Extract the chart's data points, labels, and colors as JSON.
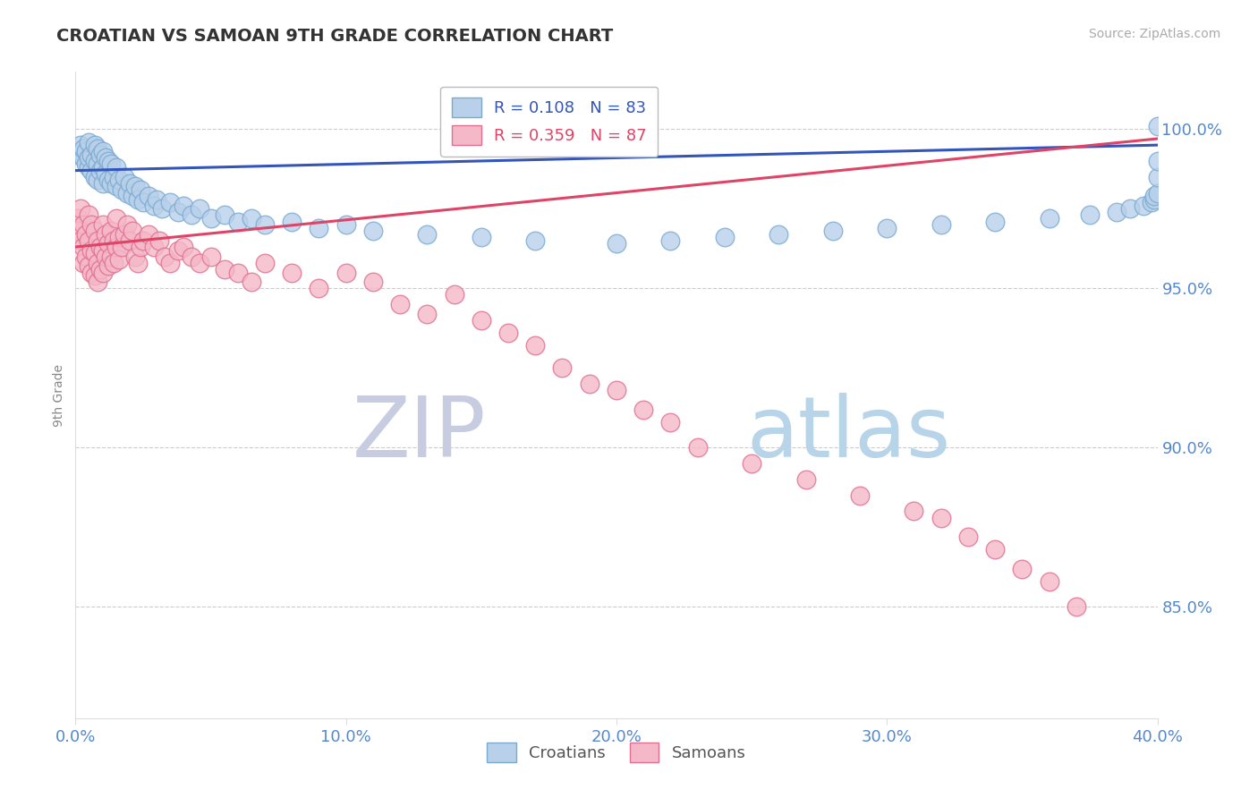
{
  "title": "CROATIAN VS SAMOAN 9TH GRADE CORRELATION CHART",
  "source_text": "Source: ZipAtlas.com",
  "ylabel": "9th Grade",
  "xlim": [
    0.0,
    0.4
  ],
  "ylim": [
    0.815,
    1.018
  ],
  "yticks": [
    0.85,
    0.9,
    0.95,
    1.0
  ],
  "ytick_labels": [
    "85.0%",
    "90.0%",
    "95.0%",
    "100.0%"
  ],
  "xticks": [
    0.0,
    0.1,
    0.2,
    0.3,
    0.4
  ],
  "xtick_labels": [
    "0.0%",
    "10.0%",
    "20.0%",
    "30.0%",
    "40.0%"
  ],
  "legend_label_1": "R = 0.108   N = 83",
  "legend_label_2": "R = 0.359   N = 87",
  "blue_dot_color": "#b8d0ea",
  "blue_edge_color": "#7aaad0",
  "pink_dot_color": "#f5b8c8",
  "pink_edge_color": "#e07090",
  "blue_line_color": "#3355bb",
  "pink_line_color": "#dd4466",
  "grid_color": "#cccccc",
  "title_color": "#333333",
  "axis_color": "#5588cc",
  "watermark_zip_color": "#c8cce0",
  "watermark_atlas_color": "#b8d4e8",
  "background_color": "#ffffff",
  "croatian_x": [
    0.001,
    0.002,
    0.002,
    0.003,
    0.003,
    0.004,
    0.004,
    0.005,
    0.005,
    0.005,
    0.006,
    0.006,
    0.007,
    0.007,
    0.007,
    0.008,
    0.008,
    0.008,
    0.009,
    0.009,
    0.01,
    0.01,
    0.01,
    0.011,
    0.011,
    0.012,
    0.012,
    0.013,
    0.013,
    0.014,
    0.015,
    0.015,
    0.016,
    0.017,
    0.018,
    0.019,
    0.02,
    0.021,
    0.022,
    0.023,
    0.024,
    0.025,
    0.027,
    0.029,
    0.03,
    0.032,
    0.035,
    0.038,
    0.04,
    0.043,
    0.046,
    0.05,
    0.055,
    0.06,
    0.065,
    0.07,
    0.08,
    0.09,
    0.1,
    0.11,
    0.13,
    0.15,
    0.17,
    0.2,
    0.22,
    0.24,
    0.26,
    0.28,
    0.3,
    0.32,
    0.34,
    0.36,
    0.375,
    0.385,
    0.39,
    0.395,
    0.398,
    0.399,
    0.399,
    0.4,
    0.4,
    0.4,
    0.4
  ],
  "croatian_y": [
    0.992,
    0.993,
    0.995,
    0.991,
    0.994,
    0.989,
    0.993,
    0.988,
    0.991,
    0.996,
    0.987,
    0.992,
    0.985,
    0.99,
    0.995,
    0.984,
    0.989,
    0.994,
    0.987,
    0.992,
    0.983,
    0.988,
    0.993,
    0.986,
    0.991,
    0.984,
    0.99,
    0.983,
    0.989,
    0.985,
    0.982,
    0.988,
    0.984,
    0.981,
    0.985,
    0.98,
    0.983,
    0.979,
    0.982,
    0.978,
    0.981,
    0.977,
    0.979,
    0.976,
    0.978,
    0.975,
    0.977,
    0.974,
    0.976,
    0.973,
    0.975,
    0.972,
    0.973,
    0.971,
    0.972,
    0.97,
    0.971,
    0.969,
    0.97,
    0.968,
    0.967,
    0.966,
    0.965,
    0.964,
    0.965,
    0.966,
    0.967,
    0.968,
    0.969,
    0.97,
    0.971,
    0.972,
    0.973,
    0.974,
    0.975,
    0.976,
    0.977,
    0.978,
    0.979,
    0.98,
    0.985,
    0.99,
    1.001
  ],
  "samoan_x": [
    0.001,
    0.001,
    0.002,
    0.002,
    0.003,
    0.003,
    0.003,
    0.004,
    0.004,
    0.005,
    0.005,
    0.005,
    0.006,
    0.006,
    0.006,
    0.007,
    0.007,
    0.007,
    0.008,
    0.008,
    0.008,
    0.009,
    0.009,
    0.01,
    0.01,
    0.01,
    0.011,
    0.011,
    0.012,
    0.012,
    0.013,
    0.013,
    0.014,
    0.014,
    0.015,
    0.015,
    0.016,
    0.016,
    0.017,
    0.018,
    0.019,
    0.02,
    0.021,
    0.022,
    0.023,
    0.024,
    0.025,
    0.027,
    0.029,
    0.031,
    0.033,
    0.035,
    0.038,
    0.04,
    0.043,
    0.046,
    0.05,
    0.055,
    0.06,
    0.065,
    0.07,
    0.08,
    0.09,
    0.1,
    0.11,
    0.12,
    0.13,
    0.14,
    0.15,
    0.16,
    0.17,
    0.18,
    0.19,
    0.2,
    0.21,
    0.22,
    0.23,
    0.25,
    0.27,
    0.29,
    0.31,
    0.32,
    0.33,
    0.34,
    0.35,
    0.36,
    0.37
  ],
  "samoan_y": [
    0.972,
    0.968,
    0.975,
    0.965,
    0.97,
    0.963,
    0.958,
    0.967,
    0.96,
    0.973,
    0.965,
    0.957,
    0.97,
    0.962,
    0.955,
    0.968,
    0.961,
    0.954,
    0.965,
    0.958,
    0.952,
    0.963,
    0.956,
    0.97,
    0.962,
    0.955,
    0.967,
    0.96,
    0.964,
    0.957,
    0.968,
    0.96,
    0.965,
    0.958,
    0.972,
    0.963,
    0.966,
    0.959,
    0.963,
    0.967,
    0.97,
    0.965,
    0.968,
    0.96,
    0.958,
    0.963,
    0.965,
    0.967,
    0.963,
    0.965,
    0.96,
    0.958,
    0.962,
    0.963,
    0.96,
    0.958,
    0.96,
    0.956,
    0.955,
    0.952,
    0.958,
    0.955,
    0.95,
    0.955,
    0.952,
    0.945,
    0.942,
    0.948,
    0.94,
    0.936,
    0.932,
    0.925,
    0.92,
    0.918,
    0.912,
    0.908,
    0.9,
    0.895,
    0.89,
    0.885,
    0.88,
    0.878,
    0.872,
    0.868,
    0.862,
    0.858,
    0.85
  ]
}
